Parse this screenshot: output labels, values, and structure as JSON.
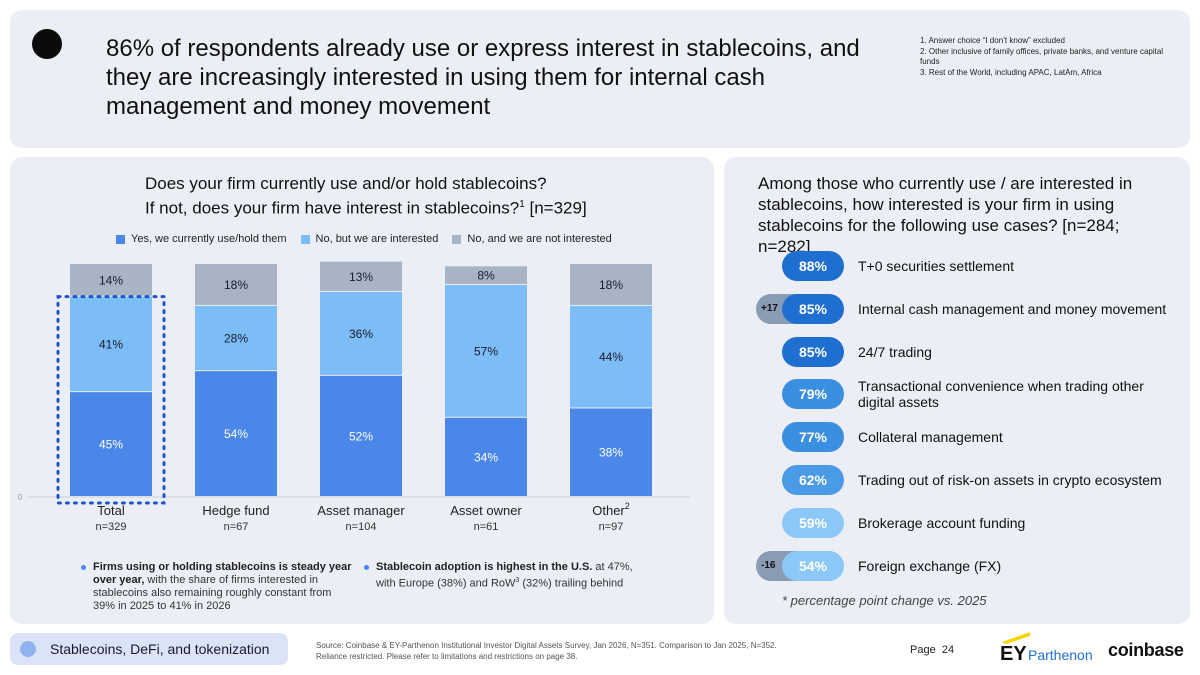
{
  "header": {
    "headline": "86% of respondents already use or express interest in stablecoins, and they are increasingly interested in using them for internal cash management and money movement",
    "footnotes": [
      "1. Answer choice “I don’t know” excluded",
      "2. Other inclusive of family offices, private banks, and venture capital funds",
      "3. Rest of the World, including APAC, LatAm, Africa"
    ]
  },
  "left_panel": {
    "question_line1": "Does your firm currently use and/or hold stablecoins?",
    "question_line2_pre": "If not, does your firm have interest in stablecoins?",
    "question_sup": "1",
    "question_line2_post": " [n=329]",
    "takeaway1_bold": "Firms using or holding stablecoins is steady year over year,",
    "takeaway1_rest": " with the share of firms interested in stablecoins also remaining roughly constant from 39% in 2025 to 41% in 2026",
    "takeaway2_bold": "Stablecoin adoption is highest in the U.S.",
    "takeaway2_mid": " at 47%, with Europe (38%) and RoW",
    "takeaway2_sup": "3",
    "takeaway2_rest": " (32%) trailing behind"
  },
  "chart_data": {
    "type": "bar",
    "stacked": true,
    "categories": [
      "Total",
      "Hedge fund",
      "Asset manager",
      "Asset owner",
      "Other"
    ],
    "category_superscripts": [
      "",
      "",
      "",
      "",
      "2"
    ],
    "sample_sizes": [
      "n=329",
      "n=67",
      "n=104",
      "n=61",
      "n=97"
    ],
    "series": [
      {
        "name": "Yes, we currently use/hold them",
        "values": [
          45,
          54,
          52,
          34,
          38
        ],
        "color": "#4a87e8"
      },
      {
        "name": "No, but we are interested",
        "values": [
          41,
          28,
          36,
          57,
          44
        ],
        "color": "#7dbdf7"
      },
      {
        "name": "No, and we are not interested",
        "values": [
          14,
          18,
          13,
          8,
          18
        ],
        "color": "#a8b4c3"
      }
    ],
    "value_suffix": "%",
    "ylim": [
      0,
      100
    ],
    "y_tick_label": "0",
    "highlighted_category": "Total"
  },
  "right_panel": {
    "question": "Among those who currently use / are interested in stablecoins, how interested is your firm in using stablecoins for the following use cases? [n=284; n=282]",
    "use_cases": [
      {
        "value": "88%",
        "label": "T+0 securities settlement",
        "color": "#1f6fd1",
        "delta": ""
      },
      {
        "value": "85%",
        "label": "Internal cash management and money movement",
        "color": "#1f6fd1",
        "delta": "+17"
      },
      {
        "value": "85%",
        "label": "24/7 trading",
        "color": "#1f6fd1",
        "delta": ""
      },
      {
        "value": "79%",
        "label": "Transactional convenience when trading other digital assets",
        "color": "#3a8fe0",
        "delta": ""
      },
      {
        "value": "77%",
        "label": "Collateral management",
        "color": "#3a8fe0",
        "delta": ""
      },
      {
        "value": "62%",
        "label": "Trading out of risk-on assets in crypto ecosystem",
        "color": "#4a9ae6",
        "delta": ""
      },
      {
        "value": "59%",
        "label": "Brokerage account funding",
        "color": "#8cc8f7",
        "delta": ""
      },
      {
        "value": "54%",
        "label": "Foreign exchange (FX)",
        "color": "#8cc8f7",
        "delta": "-16"
      }
    ],
    "note": "* percentage point change vs. 2025"
  },
  "footer": {
    "section": "Stablecoins, DeFi, and tokenization",
    "source_line1": "Source: Coinbase & EY-Parthenon Institutional Investor Digital Assets Survey, Jan 2026, N=351. Comparison to Jan 2025, N=352.",
    "source_line2": "Reliance restricted. Please refer to limitations and restrictions on page 38.",
    "page_label": "Page",
    "page_number": "24",
    "ey_brand": "EY",
    "ey_sub": "Parthenon",
    "coinbase_brand": "coinbase"
  }
}
